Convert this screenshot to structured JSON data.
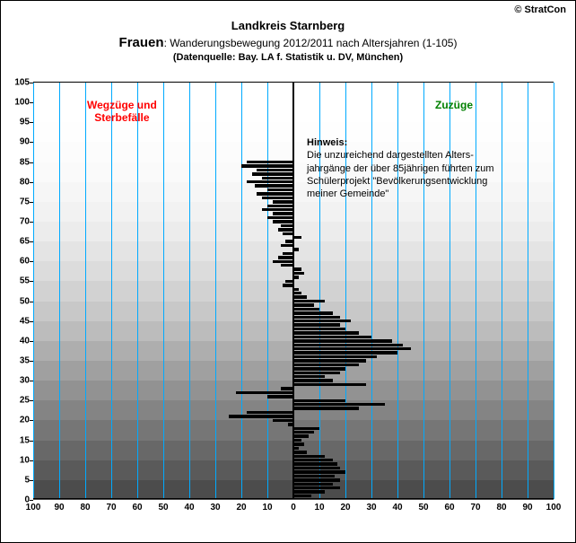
{
  "copyright": "© StratCon",
  "title_line1": "Landkreis Starnberg",
  "title_frauen": "Frauen",
  "title_line2": ": Wanderungsbewegung 2012/2011 nach Altersjahren (1-105)",
  "title_line3": "(Datenquelle: Bay. LA f. Statistik u. DV, München)",
  "label_left_l1": "Wegzüge und",
  "label_left_l2": "Sterbefälle",
  "label_right": "Zuzüge",
  "hinweis_head": "Hinweis:",
  "hinweis_l1": "Die unzureichend dargestellten Alters-",
  "hinweis_l2": "jahrgänge der über 85jährigen führten zum",
  "hinweis_l3": "Schülerprojekt \"Bevölkerungsentwicklung",
  "hinweis_l4": "meiner Gemeinde\"",
  "chart": {
    "type": "bar",
    "xlim": [
      -100,
      100
    ],
    "ylim": [
      0,
      105
    ],
    "xtick_step": 10,
    "ytick_step": 5,
    "xtick_labels": [
      "100",
      "90",
      "80",
      "70",
      "60",
      "50",
      "40",
      "30",
      "20",
      "10",
      "0",
      "10",
      "20",
      "30",
      "40",
      "50",
      "60",
      "70",
      "80",
      "90",
      "100"
    ],
    "bar_color": "#000000",
    "grid_color": "#00aaff",
    "center_axis_color": "#000000",
    "background_color": "#ffffff",
    "label_fontsize": 10,
    "title_fontsize": 13,
    "gradient_bands": [
      {
        "from": 0,
        "to": 5,
        "color": "#4c4c4c"
      },
      {
        "from": 5,
        "to": 10,
        "color": "#5a5a5a"
      },
      {
        "from": 10,
        "to": 15,
        "color": "#686868"
      },
      {
        "from": 15,
        "to": 20,
        "color": "#767676"
      },
      {
        "from": 20,
        "to": 25,
        "color": "#848484"
      },
      {
        "from": 25,
        "to": 30,
        "color": "#929292"
      },
      {
        "from": 30,
        "to": 35,
        "color": "#a0a0a0"
      },
      {
        "from": 35,
        "to": 40,
        "color": "#aeaeae"
      },
      {
        "from": 40,
        "to": 45,
        "color": "#bcbcbc"
      },
      {
        "from": 45,
        "to": 50,
        "color": "#c8c8c8"
      },
      {
        "from": 50,
        "to": 55,
        "color": "#d2d2d2"
      },
      {
        "from": 55,
        "to": 60,
        "color": "#dcdcdc"
      },
      {
        "from": 60,
        "to": 65,
        "color": "#e4e4e4"
      },
      {
        "from": 65,
        "to": 70,
        "color": "#ececec"
      },
      {
        "from": 70,
        "to": 75,
        "color": "#f2f2f2"
      },
      {
        "from": 75,
        "to": 80,
        "color": "#f6f6f6"
      },
      {
        "from": 80,
        "to": 85,
        "color": "#fafafa"
      },
      {
        "from": 85,
        "to": 90,
        "color": "#fcfcfc"
      },
      {
        "from": 90,
        "to": 95,
        "color": "#fefefe"
      },
      {
        "from": 95,
        "to": 105,
        "color": "#ffffff"
      }
    ],
    "values": [
      7,
      12,
      18,
      15,
      18,
      16,
      20,
      18,
      17,
      15,
      12,
      5,
      2,
      4,
      3,
      6,
      8,
      10,
      -2,
      -8,
      -25,
      -18,
      25,
      35,
      20,
      -10,
      -22,
      -5,
      28,
      15,
      12,
      18,
      20,
      25,
      28,
      32,
      40,
      45,
      42,
      38,
      30,
      25,
      20,
      18,
      22,
      18,
      15,
      10,
      8,
      12,
      5,
      3,
      2,
      -4,
      -3,
      2,
      4,
      3,
      -5,
      -8,
      -6,
      -4,
      2,
      -5,
      -3,
      3,
      -4,
      -6,
      -5,
      -8,
      -10,
      -8,
      -12,
      -10,
      -8,
      -12,
      -14,
      -10,
      -15,
      -18,
      -12,
      -16,
      -14,
      -20,
      -18,
      0,
      0,
      0,
      0,
      0,
      0,
      0,
      0,
      0,
      0,
      0,
      0,
      0,
      0,
      0,
      0,
      0,
      0,
      0,
      0
    ]
  }
}
